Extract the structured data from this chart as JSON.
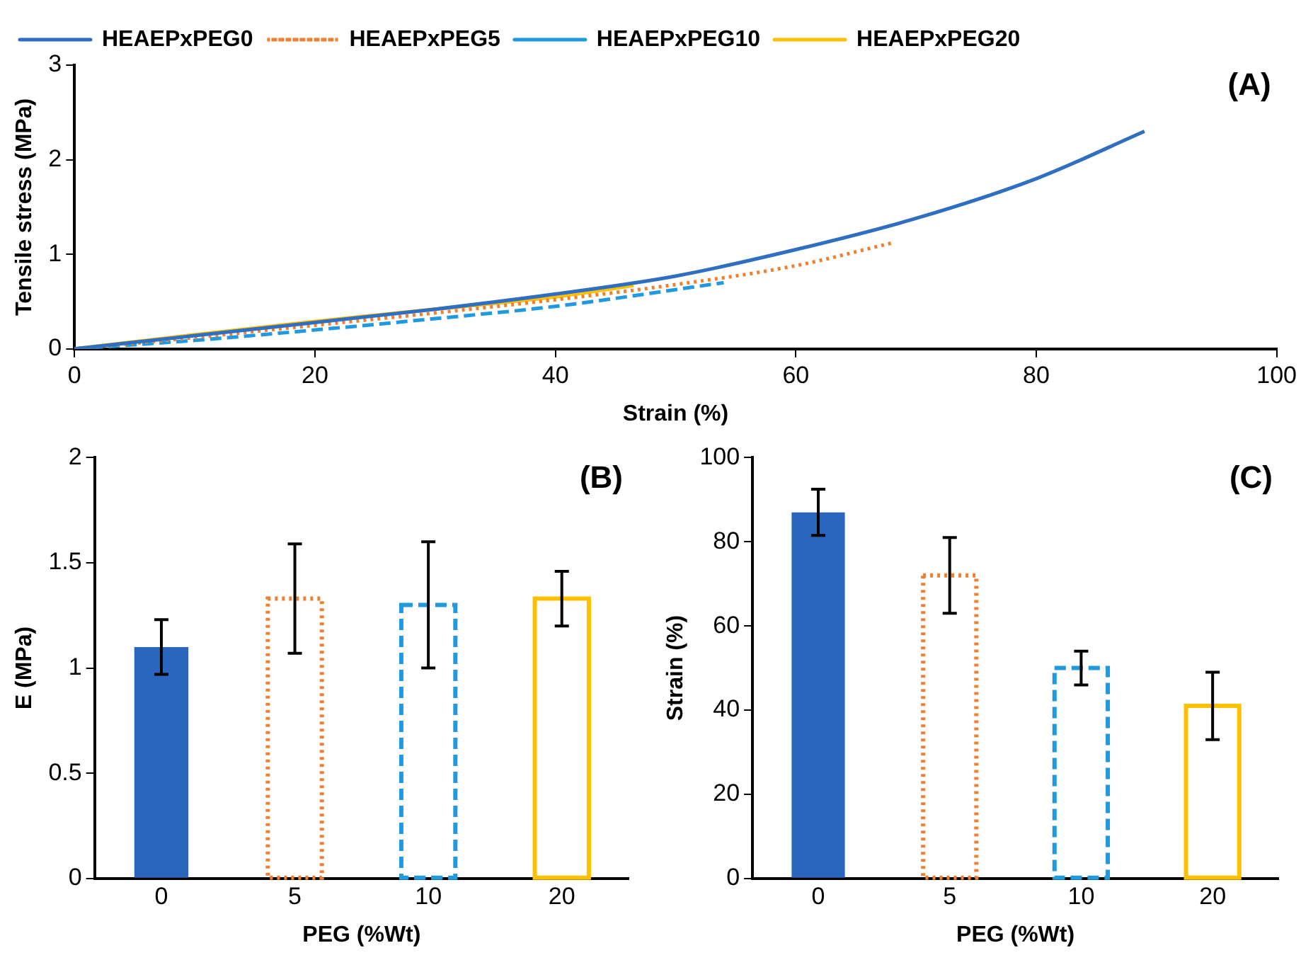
{
  "chart_data": [
    {
      "type": "line",
      "xlabel": "Strain (%)",
      "ylabel": "Tensile stress (MPa)",
      "annotations": [
        "(A)"
      ],
      "xlim": [
        0,
        100
      ],
      "xticks": [
        0,
        20,
        40,
        60,
        80,
        100
      ],
      "ylim": [
        0,
        3
      ],
      "yticks": [
        0,
        1,
        2,
        3
      ],
      "grid": false,
      "legend": "top left",
      "marker": "none",
      "series": [
        {
          "name": "HEAEPxPEG0",
          "color": "#2e6fc4",
          "line_style": "solid",
          "x": [
            0,
            10,
            20,
            30,
            40,
            50,
            60,
            70,
            80,
            89
          ],
          "values": [
            0,
            0.14,
            0.28,
            0.42,
            0.58,
            0.77,
            1.05,
            1.38,
            1.8,
            2.3
          ]
        },
        {
          "name": "HEAEPxPEG5",
          "color": "#f07f2f",
          "line_style": "dotted",
          "x": [
            0,
            10,
            20,
            30,
            40,
            50,
            60,
            68
          ],
          "values": [
            0,
            0.12,
            0.25,
            0.38,
            0.52,
            0.68,
            0.88,
            1.12
          ]
        },
        {
          "name": "HEAEPxPEG10",
          "color": "#1f9ae0",
          "line_style": "dashed",
          "x": [
            0,
            10,
            20,
            30,
            40,
            54
          ],
          "values": [
            0,
            0.09,
            0.2,
            0.32,
            0.45,
            0.7
          ]
        },
        {
          "name": "HEAEPxPEG20",
          "color": "#ffc000",
          "line_style": "solid",
          "x": [
            0,
            10,
            20,
            30,
            40,
            46.5
          ],
          "values": [
            0,
            0.15,
            0.29,
            0.42,
            0.55,
            0.67
          ]
        }
      ]
    },
    {
      "type": "bar",
      "xlabel": "PEG (%Wt)",
      "ylabel": "E (MPa)",
      "annotations": [
        "(B)"
      ],
      "categories": [
        "0",
        "5",
        "10",
        "20"
      ],
      "ylim": [
        0,
        2
      ],
      "yticks": [
        0,
        0.5,
        1,
        1.5,
        2
      ],
      "grid": false,
      "series": [
        {
          "color": "#2a65be",
          "values": [
            1.1,
            null,
            null,
            null
          ],
          "errors": [
            0.13,
            null,
            null,
            null
          ]
        },
        {
          "color": "#f07f2f",
          "line_style": "dotted",
          "values": [
            null,
            1.33,
            null,
            null
          ],
          "errors": [
            null,
            0.26,
            null,
            null
          ]
        },
        {
          "color": "#1f9ae0",
          "line_style": "dashed",
          "values": [
            null,
            null,
            1.3,
            null
          ],
          "errors": [
            null,
            null,
            0.3,
            null
          ]
        },
        {
          "color": "#ffc000",
          "line_style": "solid",
          "values": [
            null,
            null,
            null,
            1.33
          ],
          "errors": [
            null,
            null,
            null,
            0.13
          ]
        }
      ]
    },
    {
      "type": "bar",
      "xlabel": "PEG (%Wt)",
      "ylabel": "Strain (%)",
      "annotations": [
        "(C)"
      ],
      "categories": [
        "0",
        "5",
        "10",
        "20"
      ],
      "ylim": [
        0,
        100
      ],
      "yticks": [
        0,
        20,
        40,
        60,
        80,
        100
      ],
      "grid": false,
      "series": [
        {
          "color": "#2a65be",
          "values": [
            87,
            null,
            null,
            null
          ],
          "errors": [
            5.5,
            null,
            null,
            null
          ]
        },
        {
          "color": "#f07f2f",
          "line_style": "dotted",
          "values": [
            null,
            72,
            null,
            null
          ],
          "errors": [
            null,
            9,
            null,
            null
          ]
        },
        {
          "color": "#1f9ae0",
          "line_style": "dashed",
          "values": [
            null,
            null,
            50,
            null
          ],
          "errors": [
            null,
            null,
            4,
            null
          ]
        },
        {
          "color": "#ffc000",
          "line_style": "solid",
          "values": [
            null,
            null,
            null,
            41
          ],
          "errors": [
            null,
            null,
            null,
            8
          ]
        }
      ]
    }
  ]
}
